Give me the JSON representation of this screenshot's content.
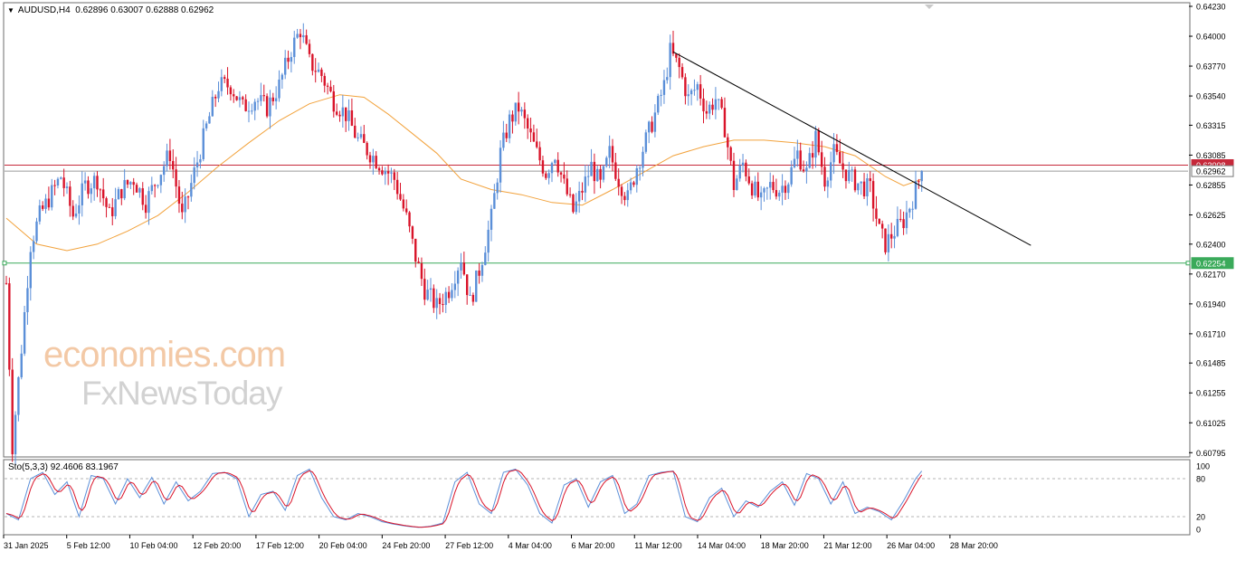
{
  "header": {
    "symbol": "AUDUSD,H4",
    "quote": "0.62896 0.63007 0.62888 0.62962"
  },
  "watermark": {
    "line1": "economies.com",
    "line2": "FxNewsToday"
  },
  "colors": {
    "bull": "#5b8fd8",
    "bear": "#d9142a",
    "ma": "#f2a23c",
    "resistance": "#c6283a",
    "support": "#3aaa5a",
    "trendline": "#000000",
    "sto_main": "#5b8fd8",
    "sto_signal": "#d9142a"
  },
  "chart_data": [
    {
      "type": "candlestick",
      "name": "AUDUSD,H4",
      "price_axis": {
        "min": 0.6079,
        "max": 0.6423,
        "ticks": [
          "0.64230",
          "0.64000",
          "0.63770",
          "0.63540",
          "0.63315",
          "0.63085",
          "0.62855",
          "0.62625",
          "0.62400",
          "0.62170",
          "0.61940",
          "0.61710",
          "0.61485",
          "0.61255",
          "0.61025",
          "0.60795"
        ]
      },
      "time_axis": {
        "labels": [
          "31 Jan 2025",
          "5 Feb 12:00",
          "10 Feb 04:00",
          "12 Feb 20:00",
          "17 Feb 12:00",
          "20 Feb 04:00",
          "24 Feb 20:00",
          "27 Feb 12:00",
          "4 Mar 04:00",
          "6 Mar 20:00",
          "11 Mar 12:00",
          "14 Mar 04:00",
          "18 Mar 20:00",
          "21 Mar 12:00",
          "26 Mar 04:00",
          "28 Mar 20:00"
        ]
      },
      "price_path": [
        [
          0,
          0.621
        ],
        [
          2,
          0.6085
        ],
        [
          5,
          0.616
        ],
        [
          8,
          0.624
        ],
        [
          11,
          0.6262
        ],
        [
          14,
          0.6275
        ],
        [
          18,
          0.6292
        ],
        [
          22,
          0.6262
        ],
        [
          26,
          0.6285
        ],
        [
          30,
          0.629
        ],
        [
          34,
          0.6262
        ],
        [
          38,
          0.6282
        ],
        [
          42,
          0.629
        ],
        [
          46,
          0.6272
        ],
        [
          50,
          0.6292
        ],
        [
          54,
          0.631
        ],
        [
          58,
          0.626
        ],
        [
          62,
          0.6295
        ],
        [
          66,
          0.633
        ],
        [
          70,
          0.6362
        ],
        [
          74,
          0.6362
        ],
        [
          78,
          0.6345
        ],
        [
          82,
          0.6352
        ],
        [
          86,
          0.6345
        ],
        [
          90,
          0.6362
        ],
        [
          94,
          0.639
        ],
        [
          97,
          0.6405
        ],
        [
          100,
          0.638
        ],
        [
          104,
          0.637
        ],
        [
          108,
          0.635
        ],
        [
          112,
          0.634
        ],
        [
          116,
          0.632
        ],
        [
          120,
          0.631
        ],
        [
          124,
          0.63
        ],
        [
          128,
          0.629
        ],
        [
          132,
          0.626
        ],
        [
          135,
          0.623
        ],
        [
          138,
          0.6205
        ],
        [
          142,
          0.6192
        ],
        [
          146,
          0.6205
        ],
        [
          150,
          0.623
        ],
        [
          153,
          0.6195
        ],
        [
          156,
          0.622
        ],
        [
          160,
          0.626
        ],
        [
          163,
          0.631
        ],
        [
          166,
          0.6335
        ],
        [
          169,
          0.6345
        ],
        [
          172,
          0.6328
        ],
        [
          175,
          0.631
        ],
        [
          178,
          0.6295
        ],
        [
          181,
          0.631
        ],
        [
          184,
          0.6285
        ],
        [
          187,
          0.6265
        ],
        [
          190,
          0.6282
        ],
        [
          193,
          0.63
        ],
        [
          196,
          0.6285
        ],
        [
          199,
          0.631
        ],
        [
          202,
          0.629
        ],
        [
          205,
          0.6275
        ],
        [
          208,
          0.63
        ],
        [
          211,
          0.632
        ],
        [
          214,
          0.634
        ],
        [
          217,
          0.6362
        ],
        [
          219,
          0.6388
        ],
        [
          222,
          0.6375
        ],
        [
          225,
          0.6352
        ],
        [
          228,
          0.6362
        ],
        [
          231,
          0.6342
        ],
        [
          234,
          0.6352
        ],
        [
          237,
          0.633
        ],
        [
          240,
          0.6285
        ],
        [
          243,
          0.6302
        ],
        [
          246,
          0.6285
        ],
        [
          249,
          0.6272
        ],
        [
          252,
          0.6285
        ],
        [
          255,
          0.6282
        ],
        [
          258,
          0.629
        ],
        [
          261,
          0.631
        ],
        [
          264,
          0.6295
        ],
        [
          267,
          0.6322
        ],
        [
          270,
          0.629
        ],
        [
          273,
          0.631
        ],
        [
          276,
          0.6298
        ],
        [
          279,
          0.629
        ],
        [
          282,
          0.6285
        ],
        [
          285,
          0.6282
        ],
        [
          288,
          0.625
        ],
        [
          290,
          0.624
        ],
        [
          293,
          0.625
        ],
        [
          296,
          0.6258
        ],
        [
          299,
          0.6275
        ],
        [
          302,
          0.6296
        ]
      ],
      "moving_average": [
        [
          0,
          0.626
        ],
        [
          10,
          0.624
        ],
        [
          20,
          0.6235
        ],
        [
          30,
          0.624
        ],
        [
          40,
          0.625
        ],
        [
          50,
          0.6262
        ],
        [
          60,
          0.628
        ],
        [
          70,
          0.63
        ],
        [
          80,
          0.6318
        ],
        [
          90,
          0.6335
        ],
        [
          100,
          0.6348
        ],
        [
          110,
          0.6355
        ],
        [
          118,
          0.6353
        ],
        [
          126,
          0.634
        ],
        [
          134,
          0.6325
        ],
        [
          142,
          0.631
        ],
        [
          150,
          0.629
        ],
        [
          160,
          0.6282
        ],
        [
          170,
          0.6278
        ],
        [
          180,
          0.6272
        ],
        [
          190,
          0.627
        ],
        [
          200,
          0.6282
        ],
        [
          210,
          0.6295
        ],
        [
          220,
          0.6308
        ],
        [
          230,
          0.6315
        ],
        [
          240,
          0.632
        ],
        [
          250,
          0.632
        ],
        [
          260,
          0.6318
        ],
        [
          270,
          0.6315
        ],
        [
          280,
          0.6308
        ],
        [
          290,
          0.6292
        ],
        [
          296,
          0.6285
        ],
        [
          302,
          0.629
        ]
      ],
      "horizontal_lines": [
        {
          "label": "0.63008",
          "value": 0.63008,
          "style": "resistance"
        },
        {
          "label": "0.62962",
          "value": 0.62962,
          "style": "current"
        },
        {
          "label": "0.62254",
          "value": 0.62254,
          "style": "support"
        }
      ],
      "trendline": {
        "from": [
          220,
          0.6388
        ],
        "to": [
          338,
          0.6239
        ]
      }
    },
    {
      "type": "line",
      "name": "Sto(5,3,3)",
      "header": "Sto(5,3,3) 92.4606 83.1967",
      "y_range": [
        0,
        100
      ],
      "levels": {
        "labels": [
          "100",
          "80",
          "20",
          "0"
        ],
        "dashed": [
          20,
          80
        ]
      },
      "values": [
        [
          0,
          25
        ],
        [
          4,
          15
        ],
        [
          8,
          80
        ],
        [
          12,
          90
        ],
        [
          16,
          55
        ],
        [
          20,
          75
        ],
        [
          24,
          20
        ],
        [
          28,
          85
        ],
        [
          32,
          80
        ],
        [
          36,
          40
        ],
        [
          40,
          80
        ],
        [
          44,
          50
        ],
        [
          48,
          82
        ],
        [
          52,
          40
        ],
        [
          56,
          75
        ],
        [
          60,
          45
        ],
        [
          64,
          60
        ],
        [
          68,
          88
        ],
        [
          72,
          90
        ],
        [
          76,
          80
        ],
        [
          80,
          20
        ],
        [
          84,
          55
        ],
        [
          88,
          60
        ],
        [
          92,
          30
        ],
        [
          96,
          85
        ],
        [
          100,
          95
        ],
        [
          104,
          50
        ],
        [
          108,
          20
        ],
        [
          112,
          15
        ],
        [
          116,
          25
        ],
        [
          120,
          20
        ],
        [
          124,
          12
        ],
        [
          128,
          8
        ],
        [
          132,
          5
        ],
        [
          136,
          3
        ],
        [
          140,
          5
        ],
        [
          144,
          10
        ],
        [
          148,
          75
        ],
        [
          152,
          90
        ],
        [
          156,
          40
        ],
        [
          160,
          25
        ],
        [
          164,
          90
        ],
        [
          168,
          95
        ],
        [
          172,
          70
        ],
        [
          176,
          25
        ],
        [
          180,
          10
        ],
        [
          184,
          70
        ],
        [
          188,
          80
        ],
        [
          192,
          35
        ],
        [
          196,
          75
        ],
        [
          200,
          85
        ],
        [
          204,
          25
        ],
        [
          208,
          40
        ],
        [
          212,
          85
        ],
        [
          216,
          90
        ],
        [
          220,
          92
        ],
        [
          224,
          20
        ],
        [
          228,
          12
        ],
        [
          232,
          50
        ],
        [
          236,
          65
        ],
        [
          240,
          20
        ],
        [
          244,
          45
        ],
        [
          248,
          35
        ],
        [
          252,
          60
        ],
        [
          256,
          75
        ],
        [
          260,
          38
        ],
        [
          264,
          88
        ],
        [
          268,
          80
        ],
        [
          272,
          40
        ],
        [
          276,
          75
        ],
        [
          280,
          25
        ],
        [
          284,
          35
        ],
        [
          288,
          28
        ],
        [
          292,
          15
        ],
        [
          296,
          45
        ],
        [
          300,
          80
        ],
        [
          302,
          92
        ]
      ]
    }
  ]
}
